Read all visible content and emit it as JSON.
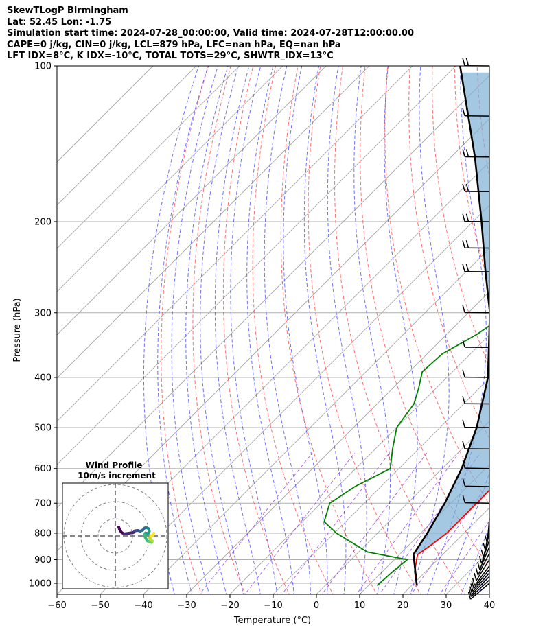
{
  "header": {
    "line1": "SkewTLogP Birmingham",
    "line2": "Lat: 52.45   Lon: -1.75",
    "line3": "Simulation start time: 2024-07-28_00:00:00, Valid time: 2024-07-28T12:00:00.00",
    "line4": "CAPE=0 j/kg, CIN=0 j/kg, LCL=879 hPa, LFC=nan hPa, EQ=nan hPa",
    "line5": "LFT IDX=8°C, K IDX=-10°C, TOTAL TOTS=29°C, SHWTR_IDX=13°C"
  },
  "chart_data": {
    "type": "line",
    "xlabel": "Temperature (°C)",
    "ylabel": "Pressure (hPa)",
    "xlim": [
      -60,
      40
    ],
    "ylim": [
      1050,
      100
    ],
    "yscale": "log",
    "x_ticks": [
      -60,
      -50,
      -40,
      -30,
      -20,
      -10,
      0,
      10,
      20,
      30,
      40
    ],
    "x_tick_labels": [
      "−60",
      "−50",
      "−40",
      "−30",
      "−20",
      "−10",
      "0",
      "10",
      "20",
      "30",
      "40"
    ],
    "y_ticks": [
      1000,
      900,
      800,
      700,
      600,
      500,
      400,
      300,
      200,
      100
    ],
    "y_tick_labels": [
      "1000",
      "900",
      "800",
      "700",
      "600",
      "500",
      "400",
      "300",
      "200",
      "100"
    ],
    "grid": true,
    "colors": {
      "temperature": "#ff0000",
      "dewpoint": "#008000",
      "parcel": "#000000",
      "dry_adiabats": "#ff4040",
      "moist_adiabats": "#4040ff",
      "mixing_ratio": "#8a2be2",
      "cape_fill": "#7fb0d6",
      "grid": "#b0b0b0"
    },
    "series": [
      {
        "key": "temperature",
        "values": [
          [
            1010,
            21.2
          ],
          [
            950,
            17.5
          ],
          [
            880,
            14.2
          ],
          [
            850,
            15.0
          ],
          [
            800,
            16.0
          ],
          [
            700,
            16.0
          ],
          [
            650,
            15.9
          ],
          [
            600,
            15.0
          ],
          [
            550,
            13.0
          ],
          [
            500,
            9.8
          ],
          [
            450,
            5.2
          ],
          [
            400,
            1.0
          ],
          [
            350,
            -3.2
          ],
          [
            300,
            -8.8
          ],
          [
            280,
            -10.6
          ],
          [
            250,
            -14.2
          ],
          [
            230,
            -17.2
          ],
          [
            215,
            -19.5
          ],
          [
            200,
            -20.6
          ],
          [
            190,
            -21.8
          ],
          [
            180,
            -22.8
          ],
          [
            170,
            -24.8
          ],
          [
            160,
            -27.0
          ],
          [
            150,
            -28.8
          ],
          [
            140,
            -30.0
          ],
          [
            130,
            -31.0
          ],
          [
            120,
            -31.6
          ],
          [
            110,
            -32.5
          ],
          [
            100,
            -33.6
          ]
        ]
      },
      {
        "key": "dewpoint",
        "values": [
          [
            1010,
            12.0
          ],
          [
            950,
            12.4
          ],
          [
            900,
            13.0
          ],
          [
            870,
            2.0
          ],
          [
            800,
            -9.5
          ],
          [
            760,
            -15.0
          ],
          [
            700,
            -18.0
          ],
          [
            650,
            -16.0
          ],
          [
            600,
            -12.0
          ],
          [
            550,
            -16.0
          ],
          [
            500,
            -20.0
          ],
          [
            450,
            -21.5
          ],
          [
            420,
            -24.0
          ],
          [
            390,
            -27.0
          ],
          [
            360,
            -26.5
          ],
          [
            330,
            -23.0
          ],
          [
            310,
            -21.5
          ],
          [
            300,
            -21.5
          ],
          [
            290,
            -20.5
          ],
          [
            270,
            -23.0
          ],
          [
            250,
            -25.0
          ],
          [
            230,
            -27.5
          ],
          [
            210,
            -30.0
          ],
          [
            200,
            -32.5
          ],
          [
            190,
            -31.0
          ],
          [
            180,
            -29.0
          ],
          [
            170,
            -29.5
          ],
          [
            160,
            -31.5
          ],
          [
            150,
            -35.0
          ],
          [
            140,
            -39.0
          ],
          [
            130,
            -39.0
          ],
          [
            120,
            -39.0
          ],
          [
            110,
            -38.5
          ],
          [
            100,
            -38.0
          ]
        ]
      },
      {
        "key": "parcel",
        "values": [
          [
            1010,
            21.2
          ],
          [
            879,
            13.2
          ],
          [
            850,
            12.6
          ],
          [
            800,
            11.5
          ],
          [
            700,
            8.6
          ],
          [
            600,
            4.5
          ],
          [
            500,
            -1.5
          ],
          [
            400,
            -10.5
          ],
          [
            300,
            -25.0
          ],
          [
            250,
            -35.5
          ],
          [
            200,
            -48.0
          ],
          [
            150,
            -64.5
          ],
          [
            100,
            -89.0
          ]
        ]
      }
    ],
    "wind_barbs": {
      "pressures": [
        1000,
        985,
        970,
        955,
        940,
        925,
        900,
        875,
        850,
        825,
        800,
        775,
        750,
        700,
        650,
        600,
        550,
        500,
        450,
        400,
        350,
        300,
        250,
        225,
        200,
        175,
        150,
        125,
        100
      ]
    },
    "inset": {
      "title": "Wind Profile",
      "subtitle": "10m/s increment",
      "hodograph_uv": [
        [
          0,
          0
        ],
        [
          0.5,
          1.5
        ],
        [
          1.5,
          3.0
        ],
        [
          3.0,
          4.0
        ],
        [
          6.0,
          3.6
        ],
        [
          8.5,
          3.2
        ],
        [
          9.5,
          2.2
        ],
        [
          11.0,
          2.0
        ],
        [
          12.5,
          2.4
        ],
        [
          14.0,
          1.8
        ],
        [
          15.0,
          0.6
        ],
        [
          16.0,
          0.2
        ],
        [
          17.2,
          0.8
        ],
        [
          17.8,
          2.5
        ],
        [
          17.0,
          3.8
        ],
        [
          15.6,
          3.5
        ],
        [
          15.0,
          4.5
        ],
        [
          15.4,
          6.0
        ],
        [
          16.6,
          8.0
        ],
        [
          18.0,
          8.8
        ],
        [
          19.2,
          9.0
        ],
        [
          19.6,
          8.2
        ],
        [
          18.6,
          7.4
        ],
        [
          18.0,
          6.2
        ],
        [
          18.8,
          5.2
        ],
        [
          20.0,
          4.6
        ],
        [
          20.4,
          3.6
        ]
      ]
    }
  }
}
